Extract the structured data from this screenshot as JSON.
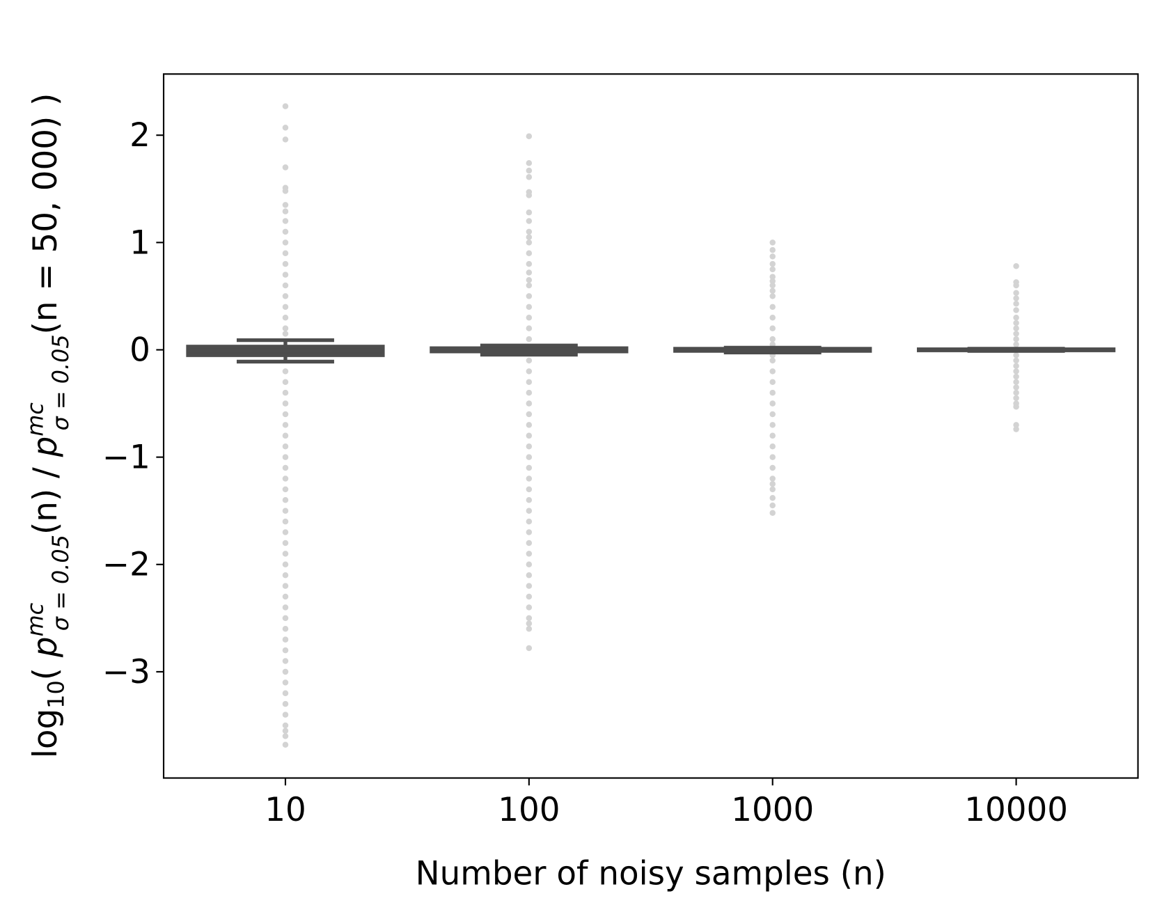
{
  "chart_data": {
    "type": "box",
    "xlabel": "Number of noisy samples (n)",
    "ylabel": [
      "log",
      "10",
      "( ",
      "p",
      "mc",
      "σ = 0.05",
      "(n) / ",
      "p",
      "mc",
      "σ = 0.05",
      "(n = 50, 000) )"
    ],
    "categories": [
      "10",
      "100",
      "1000",
      "10000"
    ],
    "color": "#4d4d4d",
    "flier_color": "#d3d3d3",
    "ylim": [
      -3.99,
      2.57
    ],
    "yticks": [
      {
        "value": -3,
        "label": "−3"
      },
      {
        "value": -2,
        "label": "−2"
      },
      {
        "value": -1,
        "label": "−1"
      },
      0,
      1,
      2
    ],
    "boxes": [
      {
        "whislo": -0.11,
        "q1": -0.05,
        "median": -0.01,
        "q3": 0.03,
        "whishi": 0.09,
        "fliers": [
          2.27,
          2.07,
          1.96,
          1.7,
          1.51,
          1.48,
          1.35,
          1.29,
          1.2,
          1.1,
          1.0,
          0.9,
          0.8,
          0.7,
          0.6,
          0.5,
          0.4,
          0.3,
          0.2,
          0.15,
          -0.2,
          -0.3,
          -0.4,
          -0.5,
          -0.6,
          -0.7,
          -0.8,
          -0.9,
          -1.0,
          -1.1,
          -1.2,
          -1.3,
          -1.4,
          -1.5,
          -1.6,
          -1.7,
          -1.8,
          -1.9,
          -2.0,
          -2.1,
          -2.2,
          -2.3,
          -2.4,
          -2.5,
          -2.6,
          -2.7,
          -2.8,
          -2.9,
          -3.0,
          -3.1,
          -3.2,
          -3.3,
          -3.4,
          -3.5,
          -3.55,
          -3.6,
          -3.68
        ]
      },
      {
        "whislo": -0.045,
        "q1": -0.015,
        "median": 0,
        "q3": 0.015,
        "whishi": 0.04,
        "fliers": [
          1.99,
          1.74,
          1.67,
          1.61,
          1.47,
          1.44,
          1.28,
          1.2,
          1.1,
          1.05,
          1.0,
          0.9,
          0.8,
          0.72,
          0.65,
          0.6,
          0.5,
          0.4,
          0.3,
          0.2,
          0.1,
          -0.1,
          -0.2,
          -0.3,
          -0.4,
          -0.5,
          -0.6,
          -0.7,
          -0.8,
          -0.9,
          -1.0,
          -1.1,
          -1.2,
          -1.3,
          -1.4,
          -1.5,
          -1.6,
          -1.7,
          -1.8,
          -1.9,
          -2.0,
          -2.1,
          -2.2,
          -2.3,
          -2.4,
          -2.5,
          -2.55,
          -2.6,
          -2.78
        ]
      },
      {
        "whislo": -0.025,
        "q1": -0.01,
        "median": 0,
        "q3": 0.01,
        "whishi": 0.02,
        "fliers": [
          1.0,
          0.93,
          0.87,
          0.8,
          0.75,
          0.68,
          0.64,
          0.6,
          0.55,
          0.5,
          0.4,
          0.3,
          0.2,
          0.1,
          0.05,
          -0.05,
          -0.1,
          -0.2,
          -0.3,
          -0.4,
          -0.5,
          -0.6,
          -0.7,
          -0.8,
          -0.9,
          -1.0,
          -1.1,
          -1.2,
          -1.25,
          -1.3,
          -1.38,
          -1.45,
          -1.52
        ]
      },
      {
        "whislo": -0.01,
        "q1": -0.005,
        "median": 0,
        "q3": 0.005,
        "whishi": 0.01,
        "fliers": [
          0.78,
          0.63,
          0.6,
          0.53,
          0.48,
          0.43,
          0.37,
          0.3,
          0.25,
          0.2,
          0.15,
          0.1,
          0.05,
          -0.05,
          -0.1,
          -0.15,
          -0.2,
          -0.25,
          -0.3,
          -0.35,
          -0.4,
          -0.45,
          -0.5,
          -0.53,
          -0.7,
          -0.74
        ]
      }
    ]
  }
}
